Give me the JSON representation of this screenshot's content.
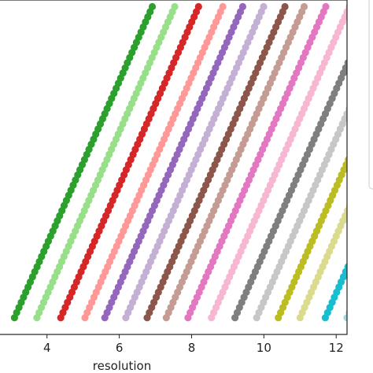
{
  "chart_data": {
    "type": "scatter",
    "title": "",
    "xlabel": "resolution",
    "ylabel": "",
    "xlim": [
      2.7,
      12.3
    ],
    "ylim": [
      0,
      1
    ],
    "grid": false,
    "legend": "right",
    "x_ticks": [
      {
        "value": 4,
        "label": "4"
      },
      {
        "value": 6,
        "label": "6"
      },
      {
        "value": 8,
        "label": "8"
      },
      {
        "value": 10,
        "label": "10"
      },
      {
        "value": 12,
        "label": "12"
      }
    ],
    "series_style": {
      "slope_x_per_unit_y": 4.1,
      "y_min": 0.05,
      "y_max": 0.98,
      "points_per_band": 62
    },
    "series": [
      {
        "color": "#2ca02c",
        "x0": 3.1
      },
      {
        "color": "#98df8a",
        "x0": 3.72
      },
      {
        "color": "#d62728",
        "x0": 4.38
      },
      {
        "color": "#ff9896",
        "x0": 5.05
      },
      {
        "color": "#9467bd",
        "x0": 5.6
      },
      {
        "color": "#c5b0d5",
        "x0": 6.18
      },
      {
        "color": "#8c564b",
        "x0": 6.77
      },
      {
        "color": "#c49c94",
        "x0": 7.3
      },
      {
        "color": "#e377c2",
        "x0": 7.9
      },
      {
        "color": "#f7b6d2",
        "x0": 8.55
      },
      {
        "color": "#7f7f7f",
        "x0": 9.2
      },
      {
        "color": "#c7c7c7",
        "x0": 9.8
      },
      {
        "color": "#bcbd22",
        "x0": 10.4
      },
      {
        "color": "#dbdb8d",
        "x0": 11.0
      },
      {
        "color": "#17becf",
        "x0": 11.7
      },
      {
        "color": "#9edae5",
        "x0": 12.3
      }
    ]
  }
}
